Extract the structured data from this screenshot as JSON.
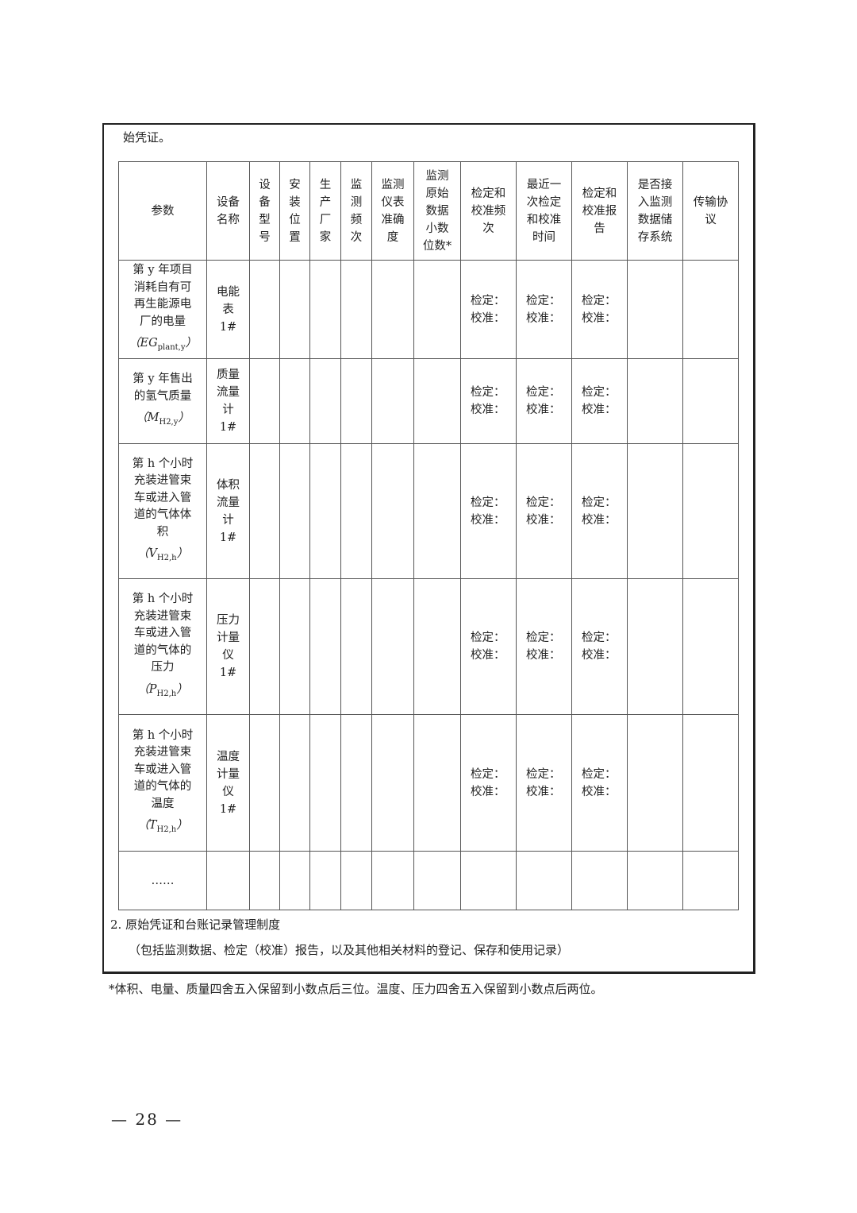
{
  "intro_text": "始凭证。",
  "table": {
    "headers": [
      "参数",
      "设备\n名称",
      "设\n备\n型\n号",
      "安\n装\n位\n置",
      "生\n产\n厂\n家",
      "监\n测\n频\n次",
      "监测\n仪表\n准确\n度",
      "监测\n原始\n数据\n小数\n位数*",
      "检定和\n校准频\n次",
      "最近一\n次检定\n和校准\n时间",
      "检定和\n校准报\n告",
      "是否接\n入监测\n数据储\n存系统",
      "传输协\n议"
    ],
    "calibration_text": "检定：\n校准：",
    "rows": [
      {
        "param": "第 y 年项目\n消耗自有可\n再生能源电\n厂的电量",
        "formula_base": "（EG",
        "formula_sub": "plant,y",
        "formula_end": "）",
        "device": "电能\n表\n1#"
      },
      {
        "param": "第 y 年售出\n的氢气质量",
        "formula_base": "（M",
        "formula_sub": "H2,y",
        "formula_end": "）",
        "device": "质量\n流量\n计\n1#"
      },
      {
        "param": "第 h 个小时\n充装进管束\n车或进入管\n道的气体体\n积",
        "formula_base": "（V",
        "formula_sub": "H2,h",
        "formula_end": "）",
        "device": "体积\n流量\n计\n1#"
      },
      {
        "param": "第 h 个小时\n充装进管束\n车或进入管\n道的气体的\n压力",
        "formula_base": "（P",
        "formula_sub": "H2,h",
        "formula_end": "）",
        "device": "压力\n计量\n仪\n1#"
      },
      {
        "param": "第 h 个小时\n充装进管束\n车或进入管\n道的气体的\n温度",
        "formula_base": "（T",
        "formula_sub": "H2,h",
        "formula_end": "）",
        "device": "温度\n计量\n仪\n1#"
      }
    ],
    "ellipsis": "……"
  },
  "section2_title": "2. 原始凭证和台账记录管理制度",
  "section2_note": "（包括监测数据、检定（校准）报告，以及其他相关材料的登记、保存和使用记录）",
  "footnote": "*体积、电量、质量四舍五入保留到小数点后三位。温度、压力四舍五入保留到小数点后两位。",
  "page_number": "— 28 —"
}
